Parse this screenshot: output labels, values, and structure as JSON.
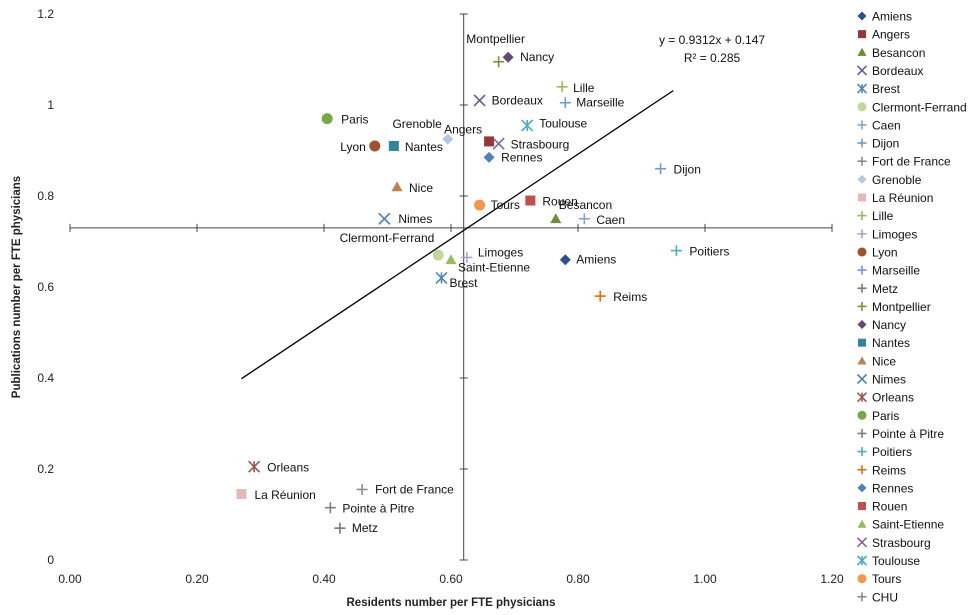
{
  "chart_data": {
    "type": "scatter",
    "xlabel": "Residents number per FTE physicians",
    "ylabel": "Publications number per FTE physicians",
    "xlim": [
      0,
      1.2
    ],
    "ylim": [
      0,
      1.2
    ],
    "xticks": [
      "0.00",
      "0.20",
      "0.40",
      "0.60",
      "0.80",
      "1.00",
      "1.20"
    ],
    "yticks": [
      "0",
      "0.2",
      "0.4",
      "0.6",
      "0.8",
      "1",
      "1.2"
    ],
    "reference_lines": {
      "x": 0.62,
      "y": 0.73
    },
    "trendline": {
      "equation": "y = 0.9312x + 0.147",
      "r2": "R² = 0.285",
      "x_range": [
        0.27,
        0.95
      ]
    },
    "legend_position": "right",
    "series": [
      {
        "name": "Amiens",
        "x": 0.78,
        "y": 0.66,
        "marker": "diamond",
        "color": "#2e4f8f"
      },
      {
        "name": "Angers",
        "x": 0.66,
        "y": 0.92,
        "marker": "square",
        "color": "#953735"
      },
      {
        "name": "Besancon",
        "x": 0.765,
        "y": 0.75,
        "marker": "triangle",
        "color": "#6f8c3a"
      },
      {
        "name": "Bordeaux",
        "x": 0.645,
        "y": 1.01,
        "marker": "x",
        "color": "#6a5a9a"
      },
      {
        "name": "Brest",
        "x": 0.585,
        "y": 0.62,
        "marker": "star",
        "color": "#4a87b8"
      },
      {
        "name": "Clermont-Ferrand",
        "x": 0.58,
        "y": 0.67,
        "marker": "circle",
        "color": "#c3d69b"
      },
      {
        "name": "Caen",
        "x": 0.81,
        "y": 0.75,
        "marker": "plus",
        "color": "#8aa4c8"
      },
      {
        "name": "Dijon",
        "x": 0.93,
        "y": 0.86,
        "marker": "plus",
        "color": "#6a9bd0"
      },
      {
        "name": "Fort de France",
        "x": 0.46,
        "y": 0.155,
        "marker": "plus",
        "color": "#8c8c8c"
      },
      {
        "name": "Grenoble",
        "x": 0.595,
        "y": 0.925,
        "marker": "diamond",
        "color": "#b4c7e7"
      },
      {
        "name": "La Réunion",
        "x": 0.27,
        "y": 0.145,
        "marker": "square",
        "color": "#e6b9b8"
      },
      {
        "name": "Lille",
        "x": 0.775,
        "y": 1.04,
        "marker": "plus",
        "color": "#9bbb59"
      },
      {
        "name": "Limoges",
        "x": 0.625,
        "y": 0.665,
        "marker": "plus",
        "color": "#b3a2c7"
      },
      {
        "name": "Lyon",
        "x": 0.48,
        "y": 0.91,
        "marker": "circle",
        "color": "#a0522d"
      },
      {
        "name": "Marseille",
        "x": 0.78,
        "y": 1.005,
        "marker": "plus",
        "color": "#6a9bd0"
      },
      {
        "name": "Metz",
        "x": 0.425,
        "y": 0.07,
        "marker": "plus",
        "color": "#777777"
      },
      {
        "name": "Montpellier",
        "x": 0.675,
        "y": 1.095,
        "marker": "plus",
        "color": "#77933c"
      },
      {
        "name": "Nancy",
        "x": 0.69,
        "y": 1.105,
        "marker": "diamond",
        "color": "#60497a"
      },
      {
        "name": "Nantes",
        "x": 0.51,
        "y": 0.91,
        "marker": "square",
        "color": "#31859c"
      },
      {
        "name": "Nice",
        "x": 0.515,
        "y": 0.82,
        "marker": "triangle",
        "color": "#c0804d"
      },
      {
        "name": "Nimes",
        "x": 0.495,
        "y": 0.75,
        "marker": "x",
        "color": "#4f81bd"
      },
      {
        "name": "Orleans",
        "x": 0.29,
        "y": 0.205,
        "marker": "star",
        "color": "#a0524f"
      },
      {
        "name": "Paris",
        "x": 0.405,
        "y": 0.97,
        "marker": "circle",
        "color": "#77a845"
      },
      {
        "name": "Pointe à Pitre",
        "x": 0.41,
        "y": 0.115,
        "marker": "plus",
        "color": "#7f7f7f"
      },
      {
        "name": "Poitiers",
        "x": 0.955,
        "y": 0.68,
        "marker": "plus",
        "color": "#4bacc6"
      },
      {
        "name": "Reims",
        "x": 0.835,
        "y": 0.58,
        "marker": "plus",
        "color": "#e46c0a"
      },
      {
        "name": "Rennes",
        "x": 0.66,
        "y": 0.885,
        "marker": "diamond",
        "color": "#4f81bd"
      },
      {
        "name": "Rouen",
        "x": 0.725,
        "y": 0.79,
        "marker": "square",
        "color": "#c0504d"
      },
      {
        "name": "Saint-Etienne",
        "x": 0.6,
        "y": 0.66,
        "marker": "triangle",
        "color": "#9bbb59"
      },
      {
        "name": "Strasbourg",
        "x": 0.675,
        "y": 0.915,
        "marker": "x",
        "color": "#8064a2"
      },
      {
        "name": "Toulouse",
        "x": 0.72,
        "y": 0.955,
        "marker": "star",
        "color": "#4bacc6"
      },
      {
        "name": "Tours",
        "x": 0.645,
        "y": 0.78,
        "marker": "circle",
        "color": "#f79646"
      },
      {
        "name": "CHU",
        "x": null,
        "y": null,
        "marker": "plus",
        "color": "#8c8c8c"
      }
    ]
  }
}
